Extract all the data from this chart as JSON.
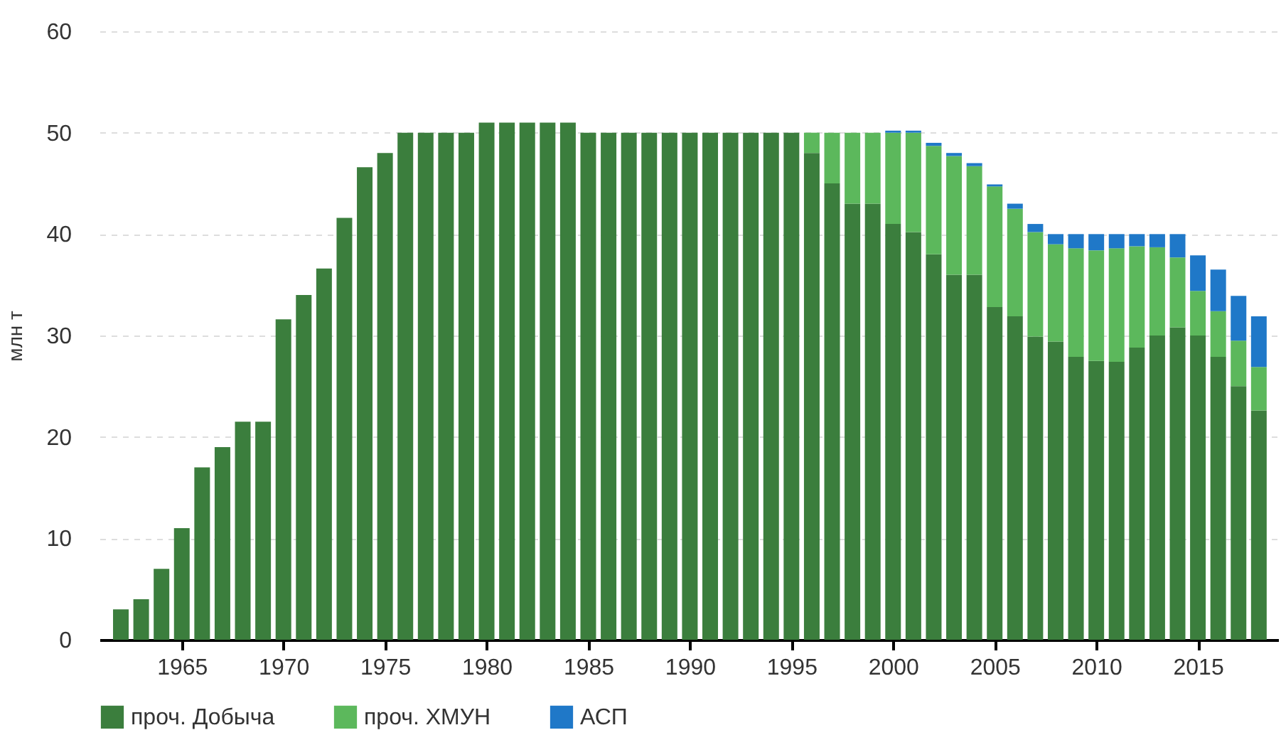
{
  "chart_data": {
    "type": "bar",
    "stacked": true,
    "ylabel": "млн т",
    "x": [
      1962,
      1963,
      1964,
      1965,
      1966,
      1967,
      1968,
      1969,
      1970,
      1971,
      1972,
      1973,
      1974,
      1975,
      1976,
      1977,
      1978,
      1979,
      1980,
      1981,
      1982,
      1983,
      1984,
      1985,
      1986,
      1987,
      1988,
      1989,
      1990,
      1991,
      1992,
      1993,
      1994,
      1995,
      1996,
      1997,
      1998,
      1999,
      2000,
      2001,
      2002,
      2003,
      2004,
      2005,
      2006,
      2007,
      2008,
      2009,
      2010,
      2011,
      2012,
      2013,
      2014,
      2015,
      2016,
      2017,
      2018
    ],
    "series": [
      {
        "name": "проч. Добыча",
        "color": "#3b7e3d",
        "values": [
          3,
          4,
          7,
          11,
          17,
          19,
          21.5,
          21.5,
          31.6,
          34,
          36.6,
          41.6,
          46.6,
          48,
          50,
          50,
          50,
          50,
          51,
          51,
          51,
          51,
          51,
          50,
          50,
          50,
          50,
          50,
          50,
          50,
          50,
          50,
          50,
          50,
          48,
          45,
          43,
          43,
          41,
          40.2,
          38,
          36,
          36,
          32.8,
          31.9,
          29.9,
          29.4,
          27.9,
          27.5,
          27.4,
          28.8,
          30,
          30.8,
          30,
          27.9,
          25,
          22.6
        ]
      },
      {
        "name": "проч. ХМУН",
        "color": "#5cb85c",
        "values": [
          null,
          null,
          null,
          null,
          null,
          null,
          null,
          null,
          null,
          null,
          null,
          null,
          null,
          null,
          null,
          null,
          null,
          null,
          null,
          null,
          null,
          null,
          null,
          null,
          null,
          null,
          null,
          null,
          null,
          null,
          null,
          null,
          null,
          null,
          2,
          5,
          7,
          7,
          9,
          9.8,
          10.7,
          11.7,
          10.7,
          11.9,
          10.6,
          10.3,
          9.6,
          10.7,
          10.9,
          11.2,
          10,
          8.7,
          6.9,
          4.4,
          4.5,
          4.5,
          4.3
        ]
      },
      {
        "name": "АСП",
        "color": "#1f78c8",
        "values": [
          null,
          null,
          null,
          null,
          null,
          null,
          null,
          null,
          null,
          null,
          null,
          null,
          null,
          null,
          null,
          null,
          null,
          null,
          null,
          null,
          null,
          null,
          null,
          null,
          null,
          null,
          null,
          null,
          null,
          null,
          null,
          null,
          null,
          null,
          null,
          null,
          null,
          null,
          0.2,
          0.2,
          0.3,
          0.3,
          0.3,
          0.2,
          0.5,
          0.8,
          1,
          1.4,
          1.6,
          1.4,
          1.2,
          1.3,
          2.3,
          3.5,
          4.1,
          4.4,
          5
        ]
      }
    ],
    "xlim": [
      1961.3,
      2018.6
    ],
    "xticks": [
      1965,
      1970,
      1975,
      1980,
      1985,
      1990,
      1995,
      2000,
      2005,
      2010,
      2015
    ],
    "ylim": [
      0,
      60
    ],
    "yticks": [
      0,
      10,
      20,
      30,
      40,
      50,
      60
    ],
    "grid": "y",
    "legend": "bottom"
  }
}
